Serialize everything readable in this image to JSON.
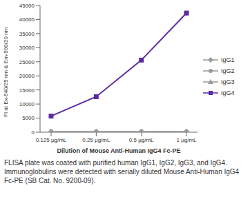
{
  "chart_data": {
    "type": "line",
    "x_label": "Dilution of Mouse Anti-Human IgG4 Fc-PE",
    "y_label": "FI at Ex-540/25 nm & Em-590/20 nm",
    "categories": [
      "0.125 µg/mL",
      "0.25 µg/mL",
      "0.5 µg/mL",
      "1 µg/mL"
    ],
    "series": [
      {
        "name": "IgG1",
        "color": "#999999",
        "marker": "diamond",
        "values": [
          100,
          100,
          100,
          100
        ]
      },
      {
        "name": "IgG2",
        "color": "#999999",
        "marker": "circle",
        "values": [
          100,
          100,
          100,
          100
        ]
      },
      {
        "name": "IgG3",
        "color": "#999999",
        "marker": "triangle",
        "values": [
          100,
          100,
          100,
          100
        ]
      },
      {
        "name": "IgG4",
        "color": "#5b2c9f",
        "marker": "square",
        "values": [
          5700,
          12600,
          25600,
          42300
        ]
      }
    ],
    "ylim": [
      0,
      45000
    ],
    "yticks": [
      0,
      5000,
      10000,
      15000,
      20000,
      25000,
      30000,
      35000,
      40000,
      45000
    ],
    "grid": false,
    "legend": "right",
    "caption": "FLISA plate was coated with purified human IgG1, IgG2, IgG3, and IgG4. Immunoglobulins were detected with serially diluted Mouse Anti-Human IgG4 Fc-PE (SB Cat. No. 9200-09)."
  }
}
